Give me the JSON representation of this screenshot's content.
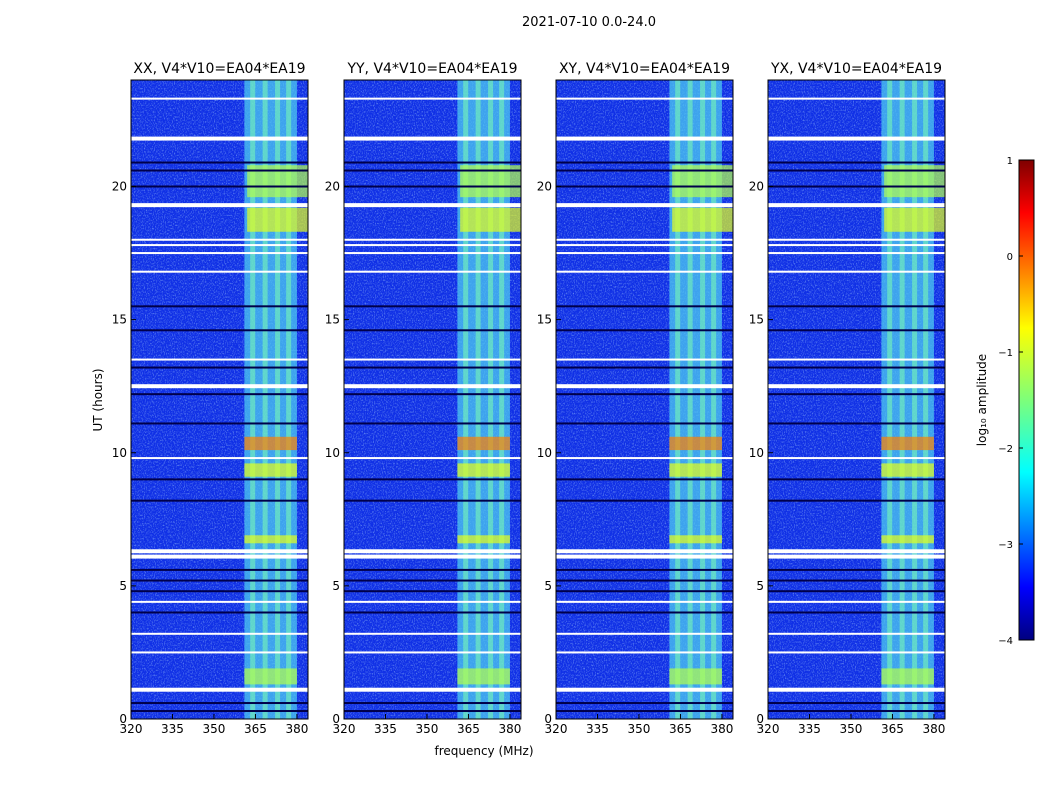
{
  "figure": {
    "suptitle": "2021-07-10 0.0-24.0",
    "ylabel": "UT (hours)",
    "xlabel": "frequency (MHz)"
  },
  "chart_data": {
    "type": "heatmap",
    "colormap": "jet",
    "x": {
      "range": [
        320,
        384
      ],
      "ticks": [
        320,
        335,
        350,
        365,
        380
      ],
      "tick_labels": [
        "320",
        "335",
        "350",
        "365",
        "380"
      ]
    },
    "y": {
      "range": [
        0,
        24
      ],
      "ticks": [
        0,
        5,
        10,
        15,
        20
      ],
      "tick_labels": [
        "0",
        "5",
        "10",
        "15",
        "20"
      ]
    },
    "panels": [
      {
        "title": "XX, V4*V10=EA04*EA19"
      },
      {
        "title": "YY, V4*V10=EA04*EA19"
      },
      {
        "title": "XY, V4*V10=EA04*EA19"
      },
      {
        "title": "YX, V4*V10=EA04*EA19"
      }
    ],
    "rfi_band_mhz": [
      361,
      380
    ],
    "rfi_columns_mhz": [
      364,
      368.5,
      373,
      377
    ],
    "flagged_rows_hours": [
      1.1,
      6.1,
      6.3,
      12.5,
      19.3,
      21.8,
      23.3,
      16.8,
      17.5,
      17.8,
      18.0,
      4.4,
      2.5,
      3.2,
      9.8,
      13.5
    ],
    "dark_rows_hours": [
      0.3,
      0.6,
      4.0,
      4.8,
      5.2,
      5.6,
      8.2,
      9.0,
      11.1,
      12.2,
      13.2,
      14.6,
      15.5,
      20.0,
      20.6,
      20.9
    ],
    "strong_regions": [
      {
        "t_start": 18.3,
        "t_end": 19.2,
        "f_start": 362,
        "f_end": 384,
        "level": 0.6
      },
      {
        "t_start": 19.6,
        "t_end": 20.8,
        "f_start": 362,
        "f_end": 384,
        "level": 0.55
      },
      {
        "t_start": 10.1,
        "t_end": 10.6,
        "f_start": 361,
        "f_end": 380,
        "level": 0.75
      },
      {
        "t_start": 9.1,
        "t_end": 9.6,
        "f_start": 361,
        "f_end": 380,
        "level": 0.6
      },
      {
        "t_start": 6.6,
        "t_end": 6.9,
        "f_start": 361,
        "f_end": 380,
        "level": 0.6
      },
      {
        "t_start": 1.3,
        "t_end": 1.9,
        "f_start": 361,
        "f_end": 380,
        "level": 0.55
      }
    ],
    "colorbar": {
      "label": "log₁₀ amplitude",
      "range": [
        -4,
        1
      ],
      "ticks": [
        1,
        0,
        -1,
        -2,
        -3,
        -4
      ],
      "tick_labels": [
        "1",
        "0",
        "−1",
        "−2",
        "−3",
        "−4"
      ]
    }
  }
}
